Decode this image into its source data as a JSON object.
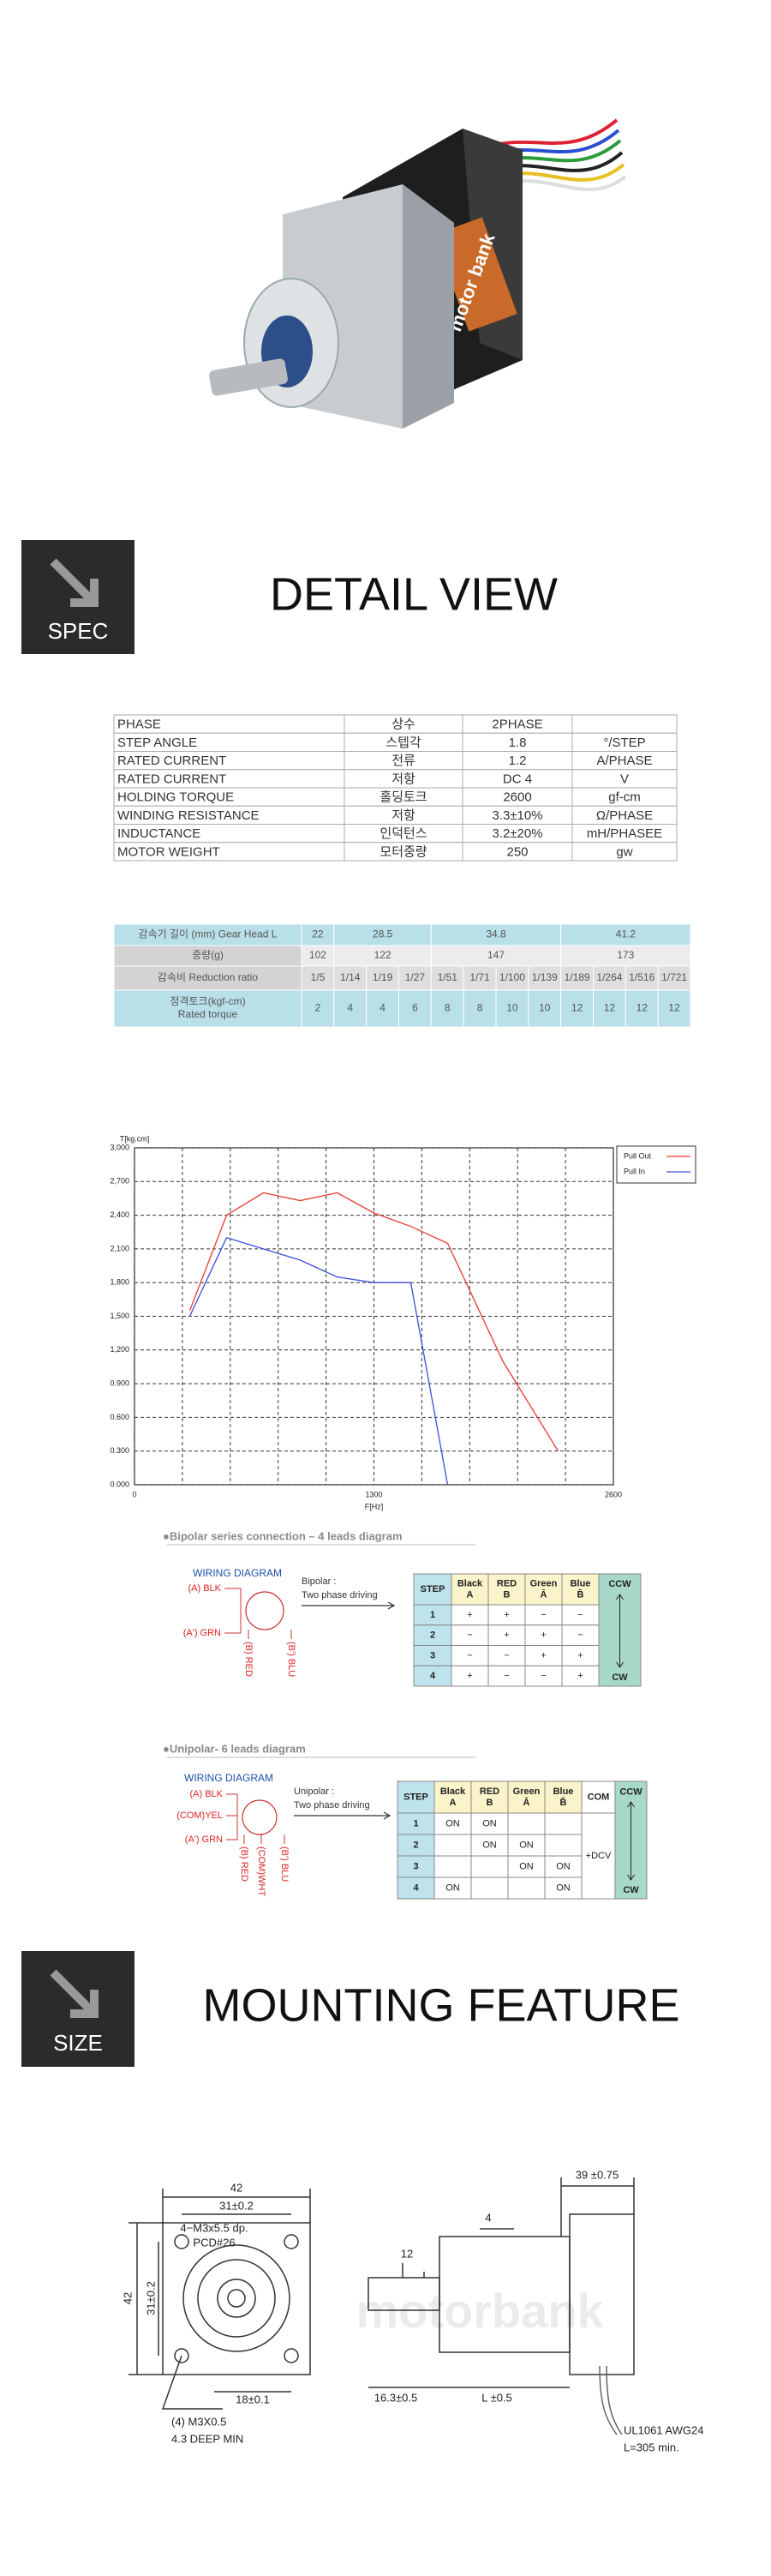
{
  "product_image": {
    "label": "motor bank"
  },
  "spec_badge": "SPEC",
  "detail_title": "DETAIL VIEW",
  "spec_table": {
    "rows": [
      [
        "PHASE",
        "상수",
        "2PHASE",
        ""
      ],
      [
        "STEP ANGLE",
        "스텝각",
        "1.8",
        "°/STEP"
      ],
      [
        "RATED CURRENT",
        "전류",
        "1.2",
        "A/PHASE"
      ],
      [
        "RATED CURRENT",
        "저항",
        "DC 4",
        "V"
      ],
      [
        "HOLDING TORQUE",
        "홀딩토크",
        "2600",
        "gf-cm"
      ],
      [
        "WINDING RESISTANCE",
        "저항",
        "3.3±10%",
        "Ω/PHASE"
      ],
      [
        "INDUCTANCE",
        "인덕턴스",
        "3.2±20%",
        "mH/PHASEE"
      ],
      [
        "MOTOR WEIGHT",
        "모터중량",
        "250",
        "gw"
      ]
    ]
  },
  "gear_table": {
    "rows": [
      [
        [
          "감속기 길이 (mm) Gear Head L"
        ],
        "22",
        "28.5",
        "34.8",
        "41.2"
      ],
      [
        [
          "중량(g)"
        ],
        "102",
        "122",
        "147",
        "173"
      ],
      [
        [
          "감속비 Reduction ratio"
        ],
        "1/5",
        "1/14",
        "1/19",
        "1/27",
        "1/51",
        "1/71",
        "1/100",
        "1/139",
        "1/189",
        "1/264",
        "1/516",
        "1/721"
      ],
      [
        [
          "정격토크(kgf-cm)",
          "Rated torque"
        ],
        "2",
        "4",
        "4",
        "6",
        "8",
        "8",
        "10",
        "10",
        "12",
        "12",
        "12",
        "12"
      ]
    ]
  },
  "chart_data": {
    "type": "line",
    "ylabel": "T[kg.cm]",
    "xlabel": "F[Hz]",
    "x": [
      300,
      500,
      700,
      900,
      1100,
      1300,
      1500,
      1700,
      2000,
      2300
    ],
    "series": [
      {
        "name": "Pull Out",
        "color": "#e8392f",
        "values": [
          1550,
          2400,
          2600,
          2530,
          2600,
          2420,
          2300,
          2150,
          1100,
          300
        ]
      },
      {
        "name": "Pull In",
        "color": "#3a4fd8",
        "values": [
          1500,
          2200,
          2100,
          2000,
          1850,
          1800,
          1800,
          0,
          null,
          null
        ]
      }
    ],
    "xlim": [
      0,
      2600
    ],
    "xticks": [
      0,
      {
        "value": 260,
        "label": null
      },
      {
        "value": 520,
        "label": null
      },
      {
        "value": 780,
        "label": null
      },
      {
        "value": 1040,
        "label": null
      },
      1300,
      {
        "value": 1560,
        "label": null
      },
      {
        "value": 1820,
        "label": null
      },
      {
        "value": 2080,
        "label": null
      },
      {
        "value": 2340,
        "label": null
      },
      2600
    ],
    "ylim": [
      0,
      3000
    ],
    "yticks": [
      {
        "value": 0,
        "label": "0.000"
      },
      {
        "value": 300,
        "label": "0.300"
      },
      {
        "value": 600,
        "label": "0.600"
      },
      {
        "value": 900,
        "label": "0.900"
      },
      {
        "value": 1200,
        "label": "1,200"
      },
      {
        "value": 1500,
        "label": "1,500"
      },
      {
        "value": 1800,
        "label": "1,800"
      },
      {
        "value": 2100,
        "label": "2,100"
      },
      {
        "value": 2400,
        "label": "2,400"
      },
      {
        "value": 2700,
        "label": "2,700"
      },
      {
        "value": 3000,
        "label": "3,000"
      }
    ],
    "grid": true,
    "legend": "upper right"
  },
  "bipolar": {
    "title": "●Bipolar series connection – 4 leads diagram",
    "diagram_title": "WIRING DIAGRAM",
    "wires": [
      "(A)  BLK",
      "(A')  GRN",
      "(B) RED",
      "(B') BLU"
    ],
    "mode": "Bipolar :",
    "mode_desc": "Two phase driving",
    "table": {
      "header": [
        [
          "STEP"
        ],
        [
          "Black",
          "A"
        ],
        [
          "RED",
          "B"
        ],
        [
          "Green",
          "Ā"
        ],
        [
          "Blue",
          "B̄"
        ],
        [
          "CCW"
        ]
      ],
      "rows": [
        [
          "1",
          "+",
          "+",
          "−",
          "−"
        ],
        [
          "2",
          "−",
          "+",
          "+",
          "−"
        ],
        [
          "3",
          "−",
          "−",
          "+",
          "+"
        ],
        [
          "4",
          "+",
          "−",
          "−",
          "+"
        ]
      ],
      "cw": "CW"
    }
  },
  "unipolar": {
    "title": "●Unipolar- 6 leads diagram",
    "diagram_title": "WIRING DIAGRAM",
    "wires": [
      "(A)  BLK",
      "(COM)YEL",
      "(A')  GRN",
      "(B) RED",
      "(COM)WHT",
      "(B') BLU"
    ],
    "mode": "Unipolar :",
    "mode_desc": "Two phase driving",
    "table": {
      "header": [
        [
          "STEP"
        ],
        [
          "Black",
          "A"
        ],
        [
          "RED",
          "B"
        ],
        [
          "Green",
          "Ā"
        ],
        [
          "Blue",
          "B̄"
        ],
        [
          "COM"
        ],
        [
          "CCW"
        ]
      ],
      "rows": [
        [
          "1",
          "ON",
          "ON",
          "",
          ""
        ],
        [
          "2",
          "",
          "ON",
          "ON",
          ""
        ],
        [
          "3",
          "",
          "",
          "ON",
          "ON"
        ],
        [
          "4",
          "ON",
          "",
          "",
          "ON"
        ]
      ],
      "com": "+DCV",
      "cw": "CW"
    }
  },
  "size_badge": "SIZE",
  "mounting_title": "MOUNTING FEATURE",
  "drawing": {
    "watermark": "motorbank",
    "labels": [
      "42",
      "31±0.2",
      "4−M3x5.5 dp.",
      "PCD#26",
      "42",
      "31±0.2",
      "18±0.1",
      "(4)  M3X0.5",
      "4.3 DEEP MIN",
      "39 ±0.75",
      "4",
      "12",
      "16.3±0.5",
      "L ±0.5",
      "UL1061 AWG24",
      "L=305 min."
    ]
  }
}
